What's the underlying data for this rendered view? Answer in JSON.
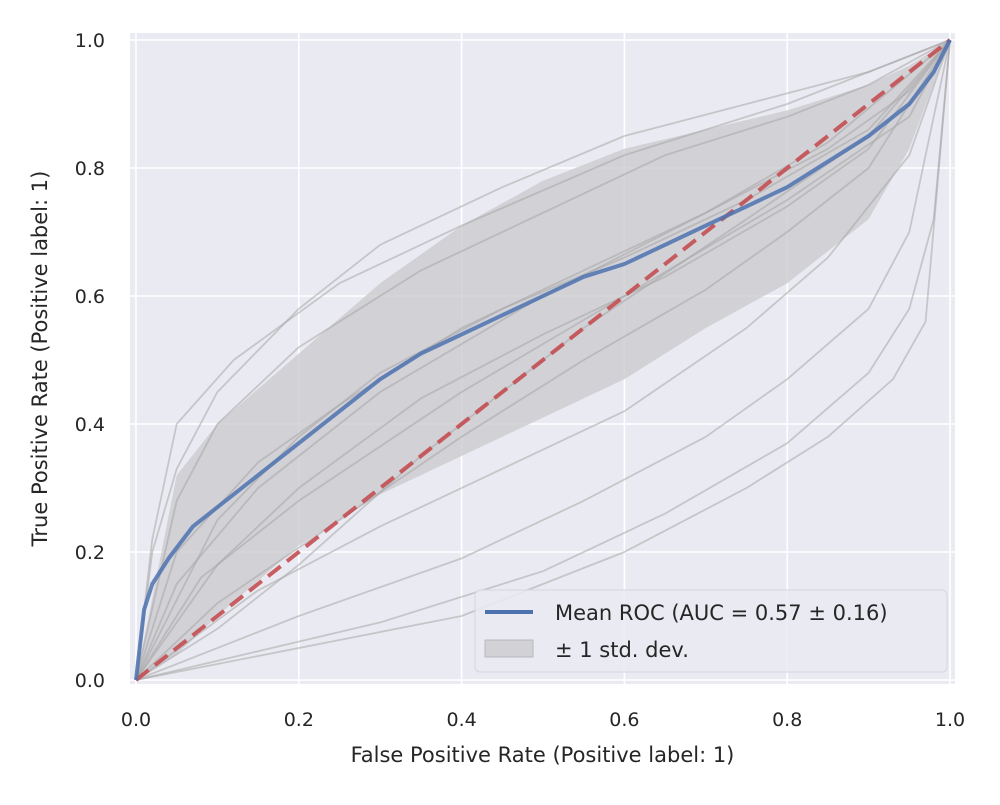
{
  "chart_data": {
    "type": "line",
    "title": "",
    "xlabel": "False Positive Rate (Positive label: 1)",
    "ylabel": "True Positive Rate (Positive label: 1)",
    "xlim": [
      0.0,
      1.0
    ],
    "ylim": [
      0.0,
      1.0
    ],
    "xticks": [
      "0.0",
      "0.2",
      "0.4",
      "0.6",
      "0.8",
      "1.0"
    ],
    "yticks": [
      "0.0",
      "0.2",
      "0.4",
      "0.6",
      "0.8",
      "1.0"
    ],
    "grid": true,
    "legend_position": "lower-right",
    "colors": {
      "background": "#EAEAF2",
      "grid": "#FFFFFF",
      "mean_roc": "#4C72B0",
      "chance": "#C44E52",
      "folds": "#A8A8A8",
      "band": "#C8C8CC"
    },
    "series": [
      {
        "name": "Mean ROC (AUC = 0.57 ± 0.16)",
        "style": "solid",
        "x": [
          0.0,
          0.01,
          0.02,
          0.04,
          0.07,
          0.1,
          0.15,
          0.2,
          0.25,
          0.3,
          0.35,
          0.4,
          0.45,
          0.5,
          0.55,
          0.6,
          0.65,
          0.7,
          0.75,
          0.8,
          0.85,
          0.9,
          0.95,
          0.98,
          1.0
        ],
        "y": [
          0.0,
          0.11,
          0.15,
          0.19,
          0.24,
          0.27,
          0.32,
          0.37,
          0.42,
          0.47,
          0.51,
          0.54,
          0.57,
          0.6,
          0.63,
          0.65,
          0.68,
          0.71,
          0.74,
          0.77,
          0.81,
          0.85,
          0.9,
          0.95,
          1.0
        ]
      },
      {
        "name": "Chance",
        "style": "dashed",
        "x": [
          0.0,
          1.0
        ],
        "y": [
          0.0,
          1.0
        ]
      }
    ],
    "band": {
      "name": "± 1 std. dev.",
      "x": [
        0.0,
        0.05,
        0.1,
        0.2,
        0.3,
        0.4,
        0.5,
        0.6,
        0.7,
        0.8,
        0.9,
        0.95,
        1.0
      ],
      "upper": [
        0.0,
        0.32,
        0.4,
        0.51,
        0.62,
        0.71,
        0.78,
        0.83,
        0.86,
        0.89,
        0.93,
        0.96,
        1.0
      ],
      "lower": [
        0.0,
        0.04,
        0.1,
        0.21,
        0.29,
        0.35,
        0.41,
        0.47,
        0.55,
        0.62,
        0.72,
        0.83,
        1.0
      ]
    },
    "folds": [
      {
        "x": [
          0.0,
          0.02,
          0.05,
          0.1,
          0.2,
          0.3,
          0.45,
          0.6,
          0.75,
          0.9,
          1.0
        ],
        "y": [
          0.0,
          0.2,
          0.33,
          0.45,
          0.58,
          0.68,
          0.77,
          0.85,
          0.9,
          0.95,
          1.0
        ]
      },
      {
        "x": [
          0.0,
          0.05,
          0.1,
          0.2,
          0.35,
          0.5,
          0.65,
          0.8,
          0.9,
          1.0
        ],
        "y": [
          0.0,
          0.28,
          0.4,
          0.52,
          0.64,
          0.73,
          0.82,
          0.88,
          0.93,
          1.0
        ]
      },
      {
        "x": [
          0.0,
          0.05,
          0.15,
          0.25,
          0.4,
          0.55,
          0.7,
          0.85,
          0.95,
          1.0
        ],
        "y": [
          0.0,
          0.2,
          0.34,
          0.43,
          0.55,
          0.64,
          0.73,
          0.83,
          0.92,
          1.0
        ]
      },
      {
        "x": [
          0.0,
          0.1,
          0.2,
          0.3,
          0.45,
          0.6,
          0.75,
          0.9,
          1.0
        ],
        "y": [
          0.0,
          0.25,
          0.38,
          0.48,
          0.58,
          0.66,
          0.75,
          0.86,
          1.0
        ]
      },
      {
        "x": [
          0.0,
          0.1,
          0.2,
          0.35,
          0.5,
          0.65,
          0.8,
          0.9,
          1.0
        ],
        "y": [
          0.0,
          0.18,
          0.3,
          0.44,
          0.54,
          0.63,
          0.74,
          0.83,
          1.0
        ]
      },
      {
        "x": [
          0.0,
          0.1,
          0.25,
          0.4,
          0.55,
          0.7,
          0.8,
          0.9,
          1.0
        ],
        "y": [
          0.0,
          0.12,
          0.25,
          0.38,
          0.5,
          0.61,
          0.7,
          0.8,
          1.0
        ]
      },
      {
        "x": [
          0.0,
          0.15,
          0.3,
          0.45,
          0.6,
          0.75,
          0.85,
          0.95,
          1.0
        ],
        "y": [
          0.0,
          0.14,
          0.24,
          0.33,
          0.42,
          0.55,
          0.66,
          0.82,
          1.0
        ]
      },
      {
        "x": [
          0.0,
          0.2,
          0.4,
          0.55,
          0.7,
          0.8,
          0.9,
          0.95,
          1.0
        ],
        "y": [
          0.0,
          0.1,
          0.19,
          0.28,
          0.38,
          0.47,
          0.58,
          0.7,
          1.0
        ]
      },
      {
        "x": [
          0.0,
          0.3,
          0.5,
          0.65,
          0.8,
          0.9,
          0.95,
          0.98,
          1.0
        ],
        "y": [
          0.0,
          0.09,
          0.17,
          0.26,
          0.37,
          0.48,
          0.58,
          0.72,
          1.0
        ]
      },
      {
        "x": [
          0.0,
          0.4,
          0.6,
          0.75,
          0.85,
          0.93,
          0.97,
          1.0
        ],
        "y": [
          0.0,
          0.1,
          0.2,
          0.3,
          0.38,
          0.47,
          0.56,
          1.0
        ]
      },
      {
        "x": [
          0.0,
          0.02,
          0.05,
          0.12,
          0.25,
          0.4,
          0.6,
          0.8,
          1.0
        ],
        "y": [
          0.0,
          0.22,
          0.4,
          0.5,
          0.62,
          0.71,
          0.82,
          0.9,
          1.0
        ]
      },
      {
        "x": [
          0.0,
          0.05,
          0.15,
          0.3,
          0.5,
          0.7,
          0.85,
          1.0
        ],
        "y": [
          0.0,
          0.15,
          0.3,
          0.45,
          0.6,
          0.73,
          0.84,
          1.0
        ]
      },
      {
        "x": [
          0.0,
          0.1,
          0.2,
          0.35,
          0.55,
          0.75,
          0.9,
          1.0
        ],
        "y": [
          0.0,
          0.08,
          0.18,
          0.35,
          0.55,
          0.72,
          0.85,
          1.0
        ]
      },
      {
        "x": [
          0.0,
          0.08,
          0.2,
          0.4,
          0.6,
          0.8,
          0.95,
          1.0
        ],
        "y": [
          0.0,
          0.16,
          0.28,
          0.45,
          0.6,
          0.75,
          0.88,
          1.0
        ]
      }
    ]
  }
}
